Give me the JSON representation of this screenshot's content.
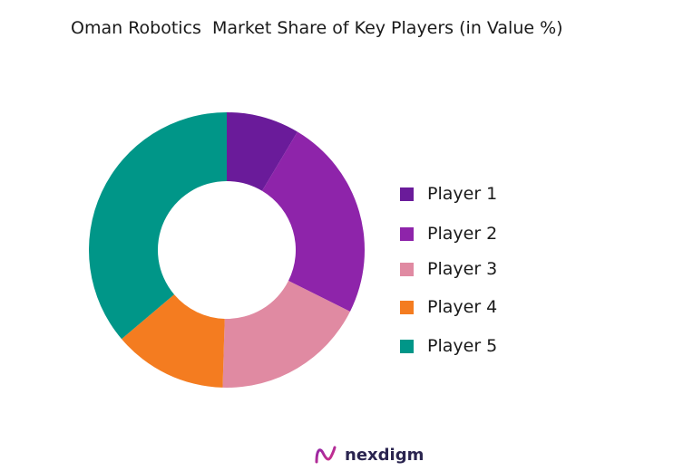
{
  "page_title": "Oman Robotics  Market Share of Key Players (in Value %)",
  "brand": {
    "name": "nexdigm"
  },
  "chart_data": {
    "type": "pie",
    "variant": "donut",
    "title": "Oman Robotics  Market Share of Key Players (in Value %)",
    "legend_position": "right",
    "categories": [
      "Player 1",
      "Player 2",
      "Player 3",
      "Player 4",
      "Player 5"
    ],
    "values": [
      9,
      25,
      19,
      14,
      38
    ],
    "colors": [
      "#6a1b9a",
      "#8e24aa",
      "#e08aa2",
      "#f47c20",
      "#009688"
    ]
  }
}
